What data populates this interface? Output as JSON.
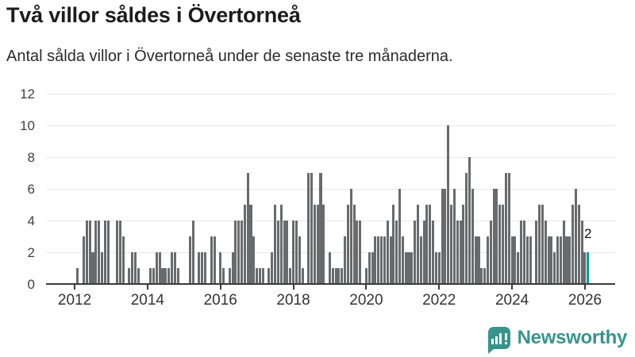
{
  "header": {
    "title": "Två villor såldes i Övertorneå",
    "subtitle": "Antal sålda villor i Övertorneå under de senaste tre månaderna."
  },
  "chart_data": {
    "type": "bar",
    "title": "Två villor såldes i Övertorneå",
    "subtitle": "Antal sålda villor i Övertorneå under de senaste tre månaderna.",
    "x_unit": "month",
    "x_range": [
      "2012-01",
      "2026-02"
    ],
    "xticks": [
      "2012",
      "2014",
      "2016",
      "2018",
      "2020",
      "2022",
      "2024",
      "2026"
    ],
    "yticks": [
      0,
      2,
      4,
      6,
      8,
      10,
      12
    ],
    "ylim": [
      0,
      12
    ],
    "grid": true,
    "legend": "none",
    "bar_color": "#696a6e",
    "highlight_color": "#009c9c",
    "highlight_index": "last",
    "annotation": {
      "text": "2",
      "target": "last-bar"
    },
    "values": [
      0,
      1,
      0,
      3,
      4,
      4,
      2,
      4,
      4,
      2,
      4,
      4,
      0,
      0,
      4,
      4,
      3,
      0,
      1,
      2,
      2,
      1,
      0,
      0,
      0,
      1,
      1,
      2,
      2,
      1,
      1,
      1,
      2,
      2,
      1,
      0,
      0,
      0,
      3,
      4,
      0,
      2,
      2,
      2,
      0,
      3,
      3,
      0,
      2,
      1,
      0,
      1,
      2,
      4,
      4,
      4,
      5,
      7,
      5,
      3,
      1,
      1,
      1,
      0,
      1,
      2,
      5,
      4,
      5,
      4,
      4,
      1,
      4,
      4,
      3,
      1,
      0,
      7,
      7,
      5,
      5,
      7,
      5,
      0,
      2,
      1,
      1,
      1,
      1,
      3,
      5,
      6,
      5,
      4,
      4,
      0,
      1,
      2,
      2,
      3,
      3,
      3,
      3,
      4,
      3,
      5,
      4,
      6,
      3,
      2,
      2,
      2,
      4,
      5,
      3,
      4,
      5,
      5,
      4,
      2,
      2,
      6,
      6,
      10,
      5,
      6,
      4,
      4,
      5,
      7,
      8,
      6,
      3,
      3,
      1,
      1,
      3,
      4,
      6,
      6,
      5,
      5,
      7,
      7,
      3,
      3,
      2,
      4,
      4,
      3,
      3,
      0,
      4,
      5,
      5,
      4,
      3,
      3,
      2,
      3,
      3,
      4,
      3,
      3,
      5,
      6,
      5,
      4,
      2,
      2
    ]
  },
  "footer": {
    "brand": "Newsworthy"
  }
}
